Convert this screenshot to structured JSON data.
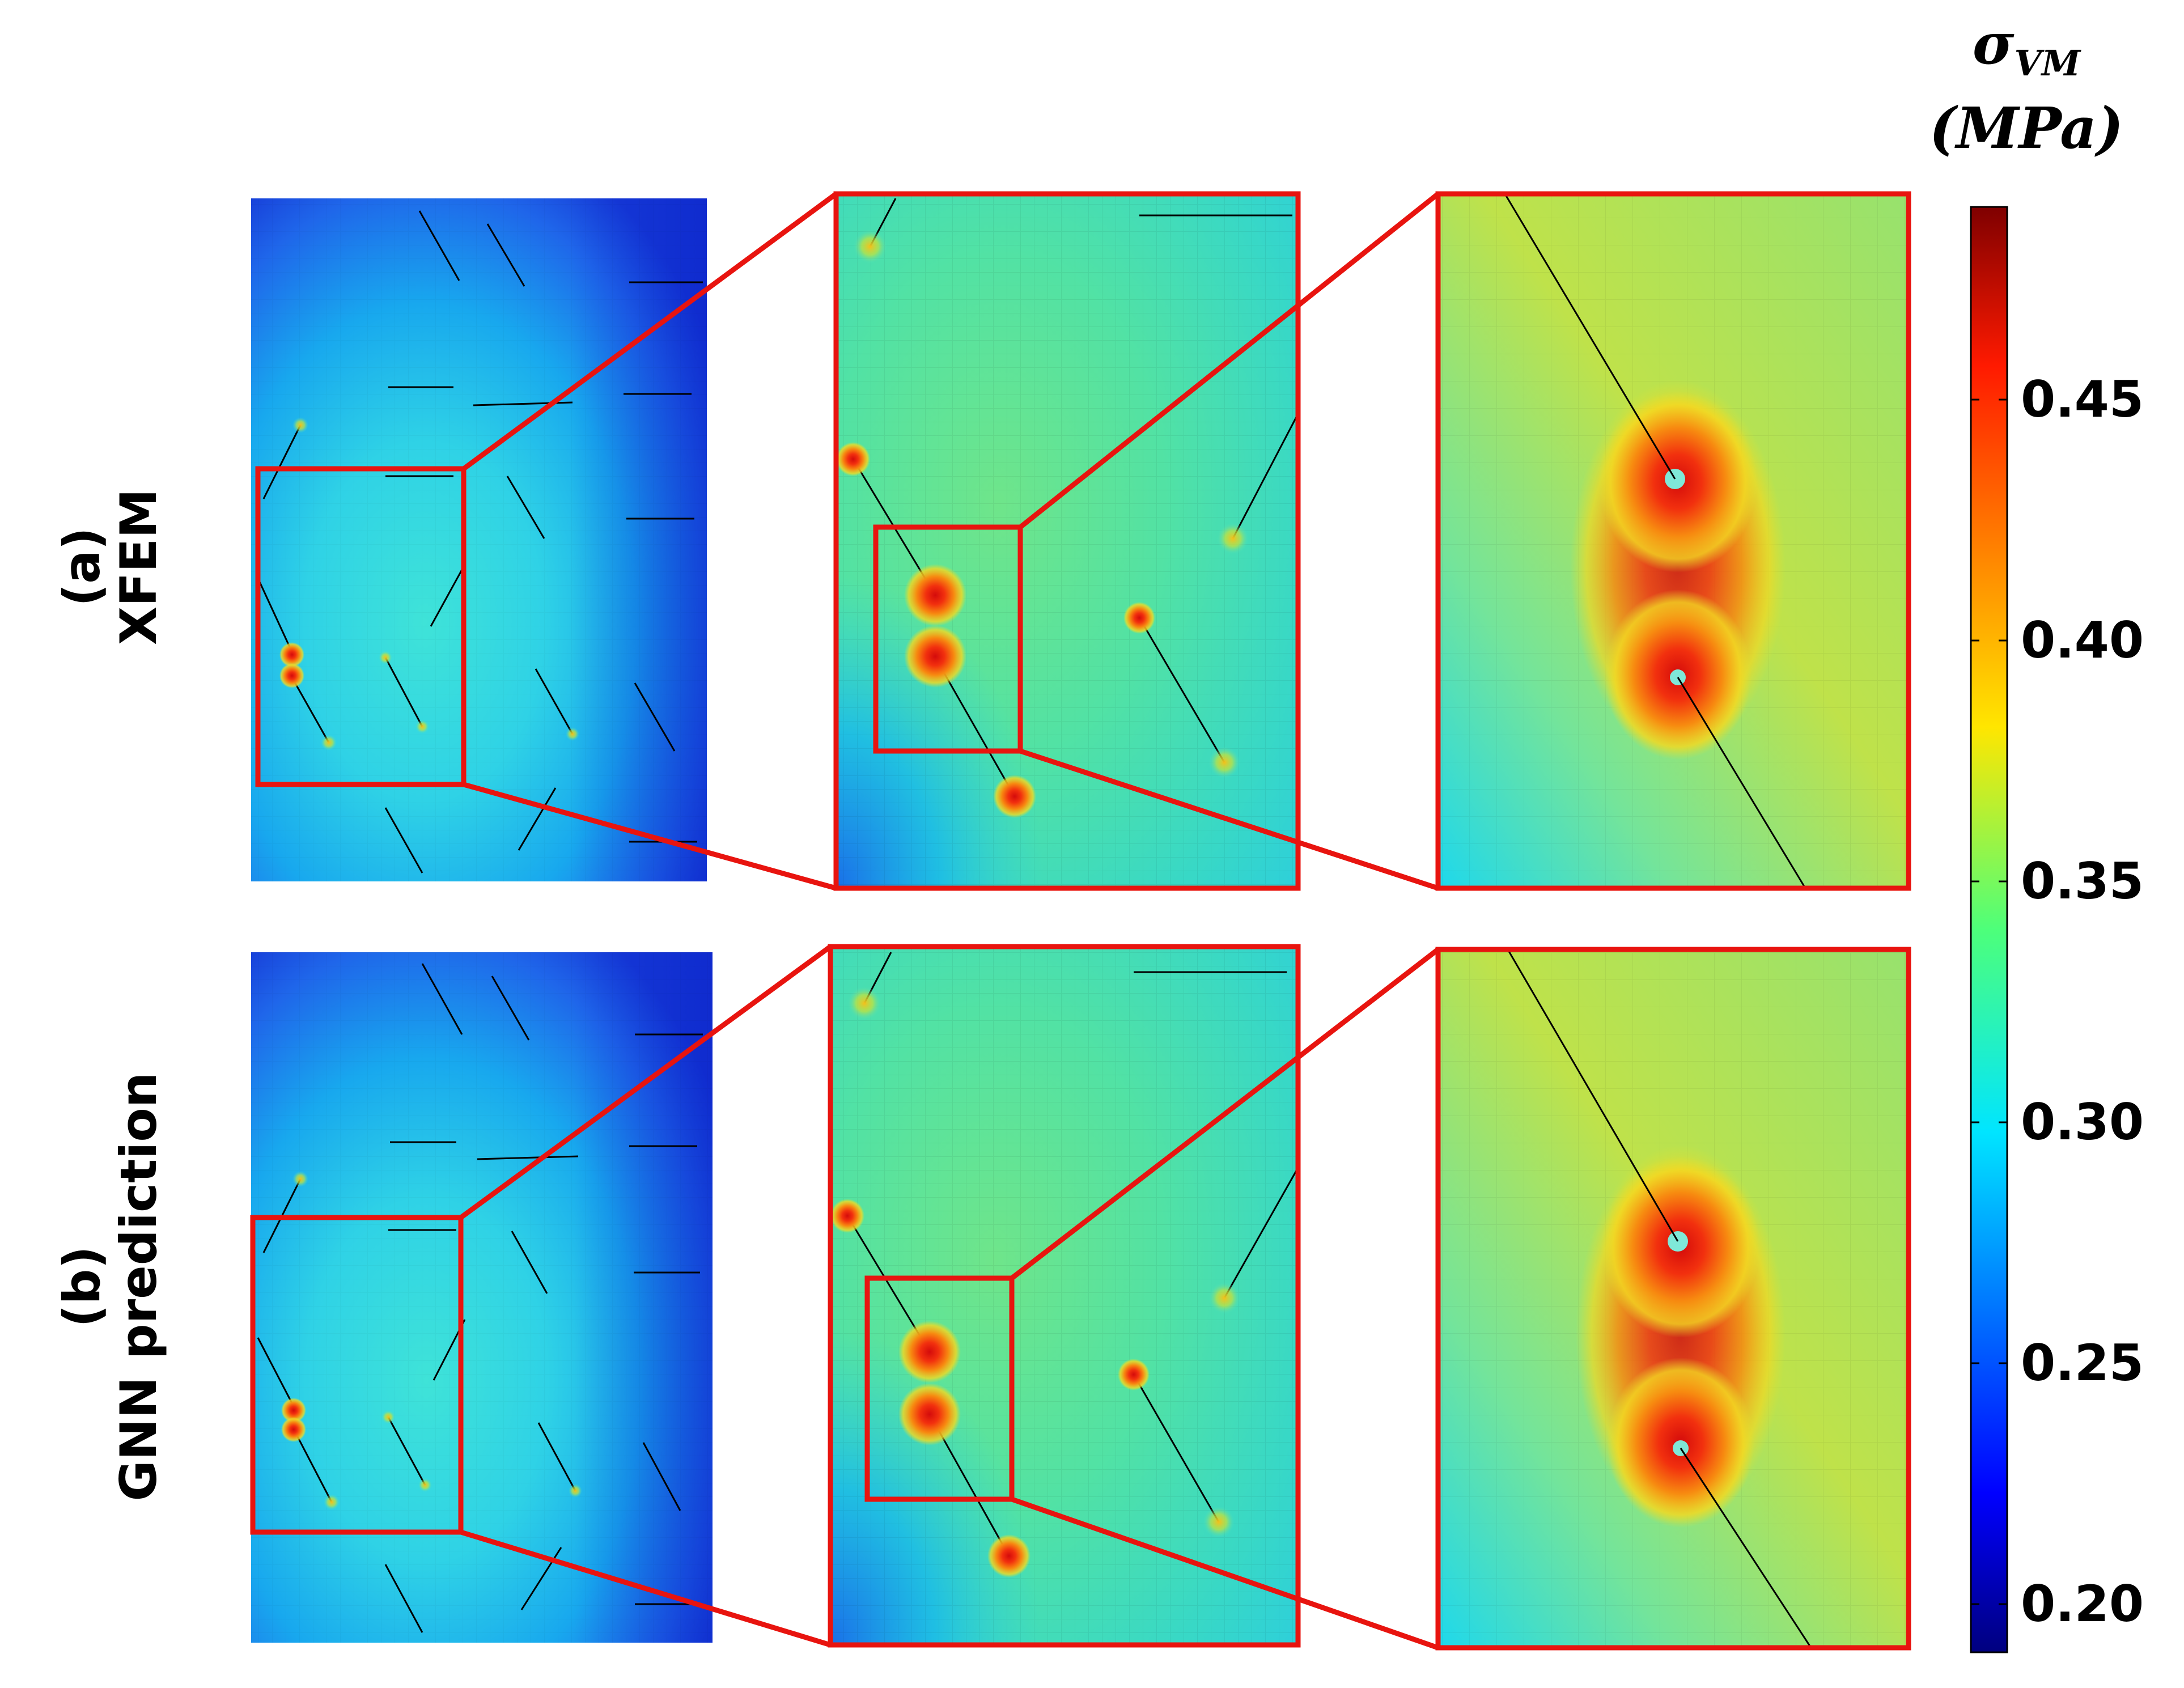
{
  "rows": [
    {
      "label_tag": "(a)",
      "label_name": "XFEM"
    },
    {
      "label_tag": "(b)",
      "label_name": "GNN prediction"
    }
  ],
  "colorbar": {
    "title_symbol": "σ",
    "title_subscript": "VM",
    "title_unit": "(MPa)",
    "vmin": 0.19,
    "vmax": 0.49,
    "ticks": [
      "0.20",
      "0.25",
      "0.30",
      "0.35",
      "0.40",
      "0.45"
    ],
    "tick_values": [
      0.2,
      0.25,
      0.3,
      0.35,
      0.4,
      0.45
    ],
    "colormap": "jet"
  },
  "colors": {
    "zoom_box": "#e8140f",
    "crack": "#000000",
    "field_far": "#1a4fe6",
    "field_mid": "#22d6e0",
    "field_hot": "#f2e32a"
  }
}
